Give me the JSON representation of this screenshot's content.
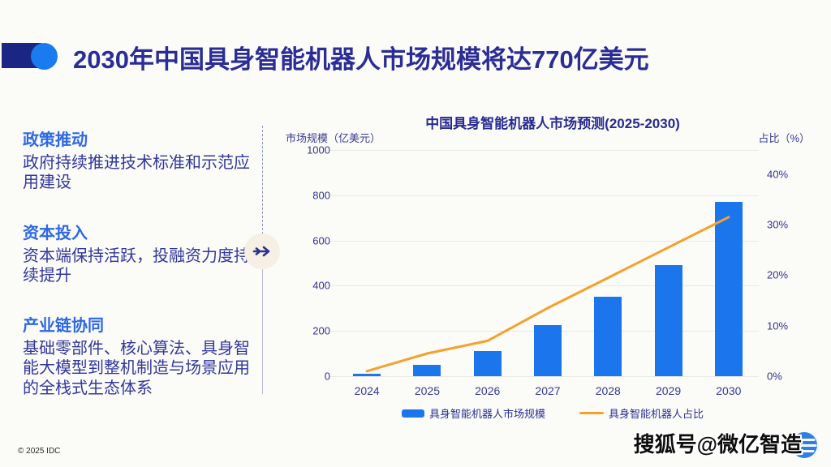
{
  "page": {
    "title": "2030年中国具身智能机器人市场规模将达770亿美元",
    "copyright": "© 2025 IDC",
    "watermark": "搜狐号@微亿智造"
  },
  "factors": [
    {
      "heading": "政策推动",
      "body": "政府持续推进技术标准和示范应用建设"
    },
    {
      "heading": "资本投入",
      "body": "资本端保持活跃，投融资力度持续提升"
    },
    {
      "heading": "产业链协同",
      "body": "基础零部件、核心算法、具身智能大模型到整机制造与场景应用的全栈式生态体系"
    }
  ],
  "chart_data": {
    "type": "bar",
    "title": "中国具身智能机器人市场预测(2025-2030)",
    "left_axis_label": "市场规模（亿美元）",
    "right_axis_label": "占比（%）",
    "categories": [
      "2024",
      "2025",
      "2026",
      "2027",
      "2028",
      "2029",
      "2030"
    ],
    "series": [
      {
        "name": "具身智能机器人市场规模",
        "type": "bar",
        "axis": "left",
        "values": [
          10,
          50,
          110,
          225,
          350,
          490,
          770
        ],
        "color": "#1b76ee"
      },
      {
        "name": "具身智能机器人占比",
        "type": "line",
        "axis": "right",
        "unit": "%",
        "values": [
          1,
          4.5,
          7,
          13.5,
          19.5,
          25.5,
          31.5
        ],
        "color": "#f6a12b"
      }
    ],
    "left_axis": {
      "min": 0,
      "max": 1000,
      "ticks": [
        0,
        200,
        400,
        600,
        800,
        1000
      ]
    },
    "right_axis": {
      "min": 0,
      "max": 44.8,
      "ticks": [
        0,
        10,
        20,
        30,
        40
      ],
      "tick_suffix": "%"
    },
    "grid": true,
    "legend_position": "bottom"
  },
  "colors": {
    "accent_navy": "#1b2583",
    "accent_blue": "#1a7bf0",
    "title_text": "#2a2d96",
    "heading_blue": "#2e68e6",
    "bar_blue": "#1b76ee",
    "line_orange": "#f6a12b"
  }
}
